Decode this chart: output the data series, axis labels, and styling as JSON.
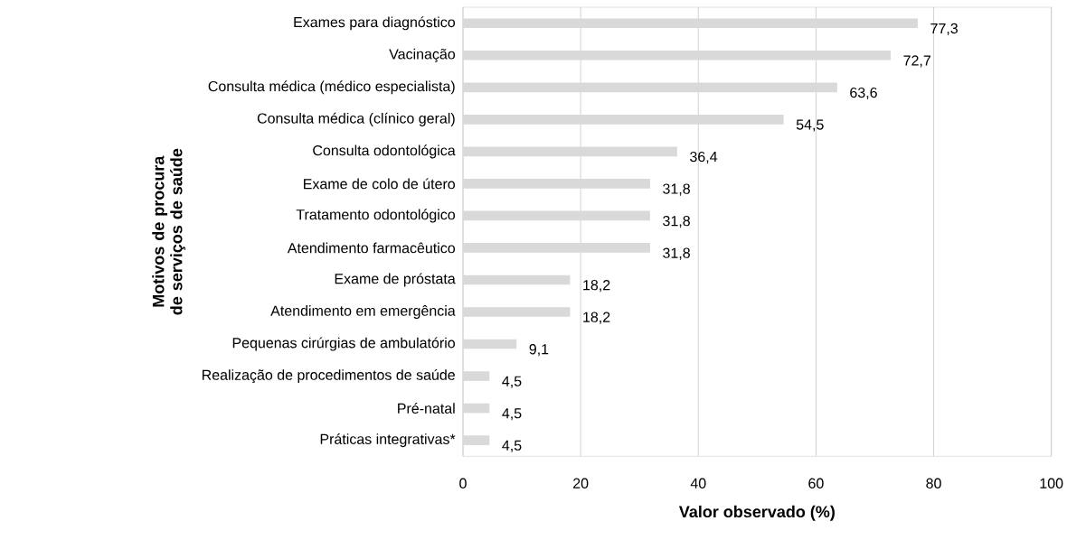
{
  "chart_data": {
    "type": "bar",
    "orientation": "horizontal",
    "xlabel": "Valor observado (%)",
    "ylabel": "Motivos de procura de serviços de saúde",
    "categories": [
      "Exames para diagnóstico",
      "Vacinação",
      "Consulta médica (médico especialista)",
      "Consulta médica (clínico geral)",
      "Consulta odontológica",
      "Exame de colo de útero",
      "Tratamento odontológico",
      "Atendimento farmacêutico",
      "Exame de próstata",
      "Atendimento em emergência",
      "Pequenas cirúrgias de ambulatório",
      "Realização de procedimentos de saúde",
      "Pré-natal",
      "Práticas integrativas*"
    ],
    "values": [
      77.3,
      72.7,
      63.6,
      54.5,
      36.4,
      31.8,
      31.8,
      31.8,
      18.2,
      18.2,
      9.1,
      4.5,
      4.5,
      4.5
    ],
    "value_labels": [
      "77,3",
      "72,7",
      "63,6",
      "54,5",
      "36,4",
      "31,8",
      "31,8",
      "31,8",
      "18,2",
      "18,2",
      "9,1",
      "4,5",
      "4,5",
      "4,5"
    ],
    "color": "#d9d9d9",
    "xlim": [
      0,
      100
    ],
    "xticks": [
      0,
      20,
      40,
      60,
      80,
      100
    ],
    "grid": "x"
  }
}
